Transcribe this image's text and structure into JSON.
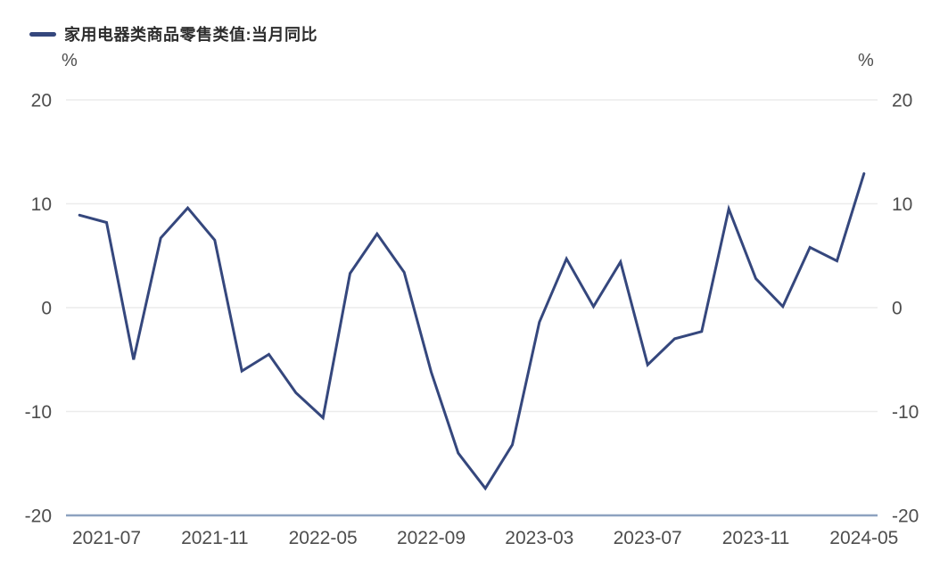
{
  "legend": {
    "label": "家用电器类商品零售类值:当月同比"
  },
  "axes": {
    "y_unit_left": "%",
    "y_unit_right": "%",
    "y_ticks": [
      20,
      10,
      0,
      -10,
      -20
    ],
    "x_tick_labels_visible": [
      "2021-07",
      "2021-11",
      "2022-05",
      "2022-09",
      "2023-03",
      "2023-07",
      "2023-11",
      "2024-05"
    ]
  },
  "colors": {
    "line": "#35477d",
    "axis_line": "#8da2c0",
    "gridline": "#ececec",
    "tick_text": "#4d4d4d",
    "legend_text": "#2d2d2d"
  },
  "chart_data": {
    "type": "line",
    "title": "家用电器类商品零售类值:当月同比",
    "xlabel": "",
    "ylabel": "%",
    "ylim": [
      -20,
      20
    ],
    "grid": "horizontal-only",
    "legend_position": "top-left",
    "x": [
      "2021-06",
      "2021-07",
      "2021-08",
      "2021-09",
      "2021-10",
      "2021-11",
      "2021-12",
      "2022-03",
      "2022-04",
      "2022-05",
      "2022-06",
      "2022-07",
      "2022-08",
      "2022-09",
      "2022-10",
      "2022-11",
      "2022-12",
      "2023-03",
      "2023-04",
      "2023-05",
      "2023-06",
      "2023-07",
      "2023-08",
      "2023-09",
      "2023-10",
      "2023-11",
      "2023-12",
      "2024-03",
      "2024-04",
      "2024-05"
    ],
    "series": [
      {
        "name": "家用电器类商品零售类值:当月同比",
        "values": [
          8.9,
          8.2,
          -5.0,
          6.7,
          9.6,
          6.5,
          -6.1,
          -4.5,
          -8.2,
          -10.6,
          3.3,
          7.1,
          3.4,
          -6.2,
          -14.0,
          -17.4,
          -13.2,
          -1.4,
          4.7,
          0.1,
          4.4,
          -5.5,
          -3.0,
          -2.3,
          9.5,
          2.8,
          0.1,
          5.8,
          4.5,
          12.9
        ]
      }
    ]
  }
}
